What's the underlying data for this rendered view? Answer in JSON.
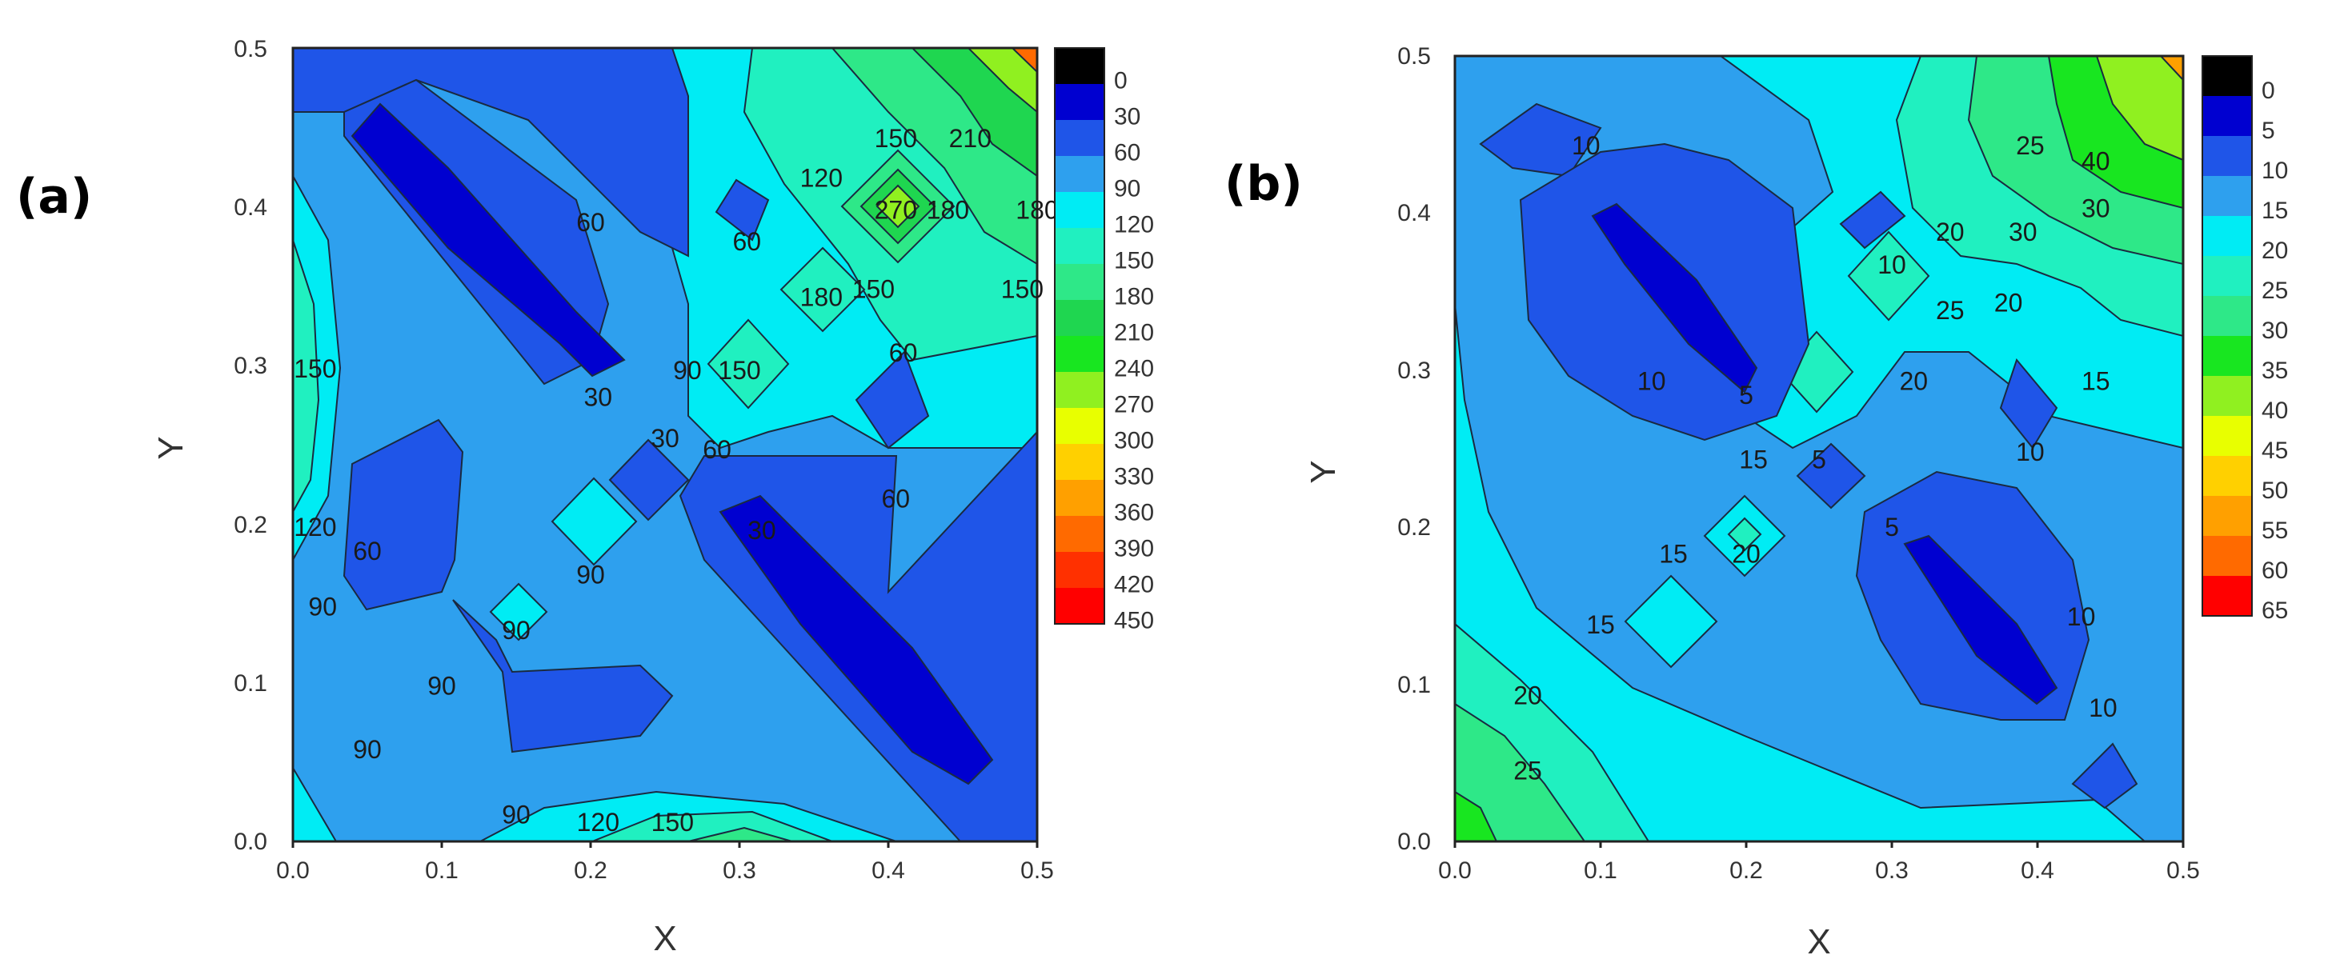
{
  "chart_data": [
    {
      "panel_label": "(a)",
      "type": "contour",
      "xlabel": "X",
      "ylabel": "Y",
      "xlim": [
        0.0,
        0.5
      ],
      "ylim": [
        0.0,
        0.5
      ],
      "x_ticks": [
        "0.0",
        "0.1",
        "0.2",
        "0.3",
        "0.4",
        "0.5"
      ],
      "y_ticks": [
        "0.0",
        "0.1",
        "0.2",
        "0.3",
        "0.4",
        "0.5"
      ],
      "colorbar": {
        "levels": [
          "0",
          "30",
          "60",
          "90",
          "120",
          "150",
          "180",
          "210",
          "240",
          "270",
          "300",
          "330",
          "360",
          "390",
          "420",
          "450"
        ],
        "colors": [
          "#000000",
          "#0000d0",
          "#1f55e8",
          "#2ea0ee",
          "#00ecf4",
          "#20f0c0",
          "#2ee888",
          "#1fd650",
          "#18e620",
          "#90f020",
          "#e8ff00",
          "#ffd000",
          "#ffa000",
          "#ff6a00",
          "#ff3000",
          "#ff0000"
        ]
      },
      "contour_labels": [
        {
          "text": "60",
          "x": 0.2,
          "y": 0.39
        },
        {
          "text": "60",
          "x": 0.305,
          "y": 0.378
        },
        {
          "text": "120",
          "x": 0.355,
          "y": 0.418
        },
        {
          "text": "150",
          "x": 0.405,
          "y": 0.443
        },
        {
          "text": "210",
          "x": 0.455,
          "y": 0.443
        },
        {
          "text": "270",
          "x": 0.405,
          "y": 0.398
        },
        {
          "text": "180",
          "x": 0.44,
          "y": 0.398
        },
        {
          "text": "180",
          "x": 0.5,
          "y": 0.398
        },
        {
          "text": "180",
          "x": 0.355,
          "y": 0.343
        },
        {
          "text": "150",
          "x": 0.39,
          "y": 0.348
        },
        {
          "text": "150",
          "x": 0.49,
          "y": 0.348
        },
        {
          "text": "90",
          "x": 0.265,
          "y": 0.297
        },
        {
          "text": "150",
          "x": 0.3,
          "y": 0.297
        },
        {
          "text": "60",
          "x": 0.41,
          "y": 0.308
        },
        {
          "text": "30",
          "x": 0.205,
          "y": 0.28
        },
        {
          "text": "30",
          "x": 0.25,
          "y": 0.254
        },
        {
          "text": "60",
          "x": 0.285,
          "y": 0.247
        },
        {
          "text": "30",
          "x": 0.315,
          "y": 0.196
        },
        {
          "text": "60",
          "x": 0.405,
          "y": 0.216
        },
        {
          "text": "150",
          "x": 0.015,
          "y": 0.298
        },
        {
          "text": "120",
          "x": 0.015,
          "y": 0.198
        },
        {
          "text": "60",
          "x": 0.05,
          "y": 0.183
        },
        {
          "text": "90",
          "x": 0.02,
          "y": 0.148
        },
        {
          "text": "90",
          "x": 0.2,
          "y": 0.168
        },
        {
          "text": "90",
          "x": 0.15,
          "y": 0.133
        },
        {
          "text": "90",
          "x": 0.1,
          "y": 0.098
        },
        {
          "text": "90",
          "x": 0.05,
          "y": 0.058
        },
        {
          "text": "90",
          "x": 0.15,
          "y": 0.017
        },
        {
          "text": "120",
          "x": 0.205,
          "y": 0.012
        },
        {
          "text": "150",
          "x": 0.255,
          "y": 0.012
        }
      ]
    },
    {
      "panel_label": "(b)",
      "type": "contour",
      "xlabel": "X",
      "ylabel": "Y",
      "xlim": [
        0.0,
        0.5
      ],
      "ylim": [
        0.0,
        0.5
      ],
      "x_ticks": [
        "0.0",
        "0.1",
        "0.2",
        "0.3",
        "0.4",
        "0.5"
      ],
      "y_ticks": [
        "0.0",
        "0.1",
        "0.2",
        "0.3",
        "0.4",
        "0.5"
      ],
      "colorbar": {
        "levels": [
          "0",
          "5",
          "10",
          "15",
          "20",
          "25",
          "30",
          "35",
          "40",
          "45",
          "50",
          "55",
          "60",
          "65"
        ],
        "colors": [
          "#000000",
          "#0000d0",
          "#1f55e8",
          "#2ea0ee",
          "#00ecf4",
          "#20f0c0",
          "#2ee888",
          "#18e620",
          "#90f020",
          "#e8ff00",
          "#ffd000",
          "#ffa000",
          "#ff6a00",
          "#ff0000"
        ]
      },
      "contour_labels": [
        {
          "text": "10",
          "x": 0.09,
          "y": 0.443
        },
        {
          "text": "25",
          "x": 0.395,
          "y": 0.443
        },
        {
          "text": "40",
          "x": 0.44,
          "y": 0.433
        },
        {
          "text": "30",
          "x": 0.44,
          "y": 0.403
        },
        {
          "text": "30",
          "x": 0.39,
          "y": 0.388
        },
        {
          "text": "20",
          "x": 0.34,
          "y": 0.388
        },
        {
          "text": "10",
          "x": 0.3,
          "y": 0.367
        },
        {
          "text": "25",
          "x": 0.34,
          "y": 0.338
        },
        {
          "text": "20",
          "x": 0.38,
          "y": 0.343
        },
        {
          "text": "20",
          "x": 0.315,
          "y": 0.293
        },
        {
          "text": "15",
          "x": 0.44,
          "y": 0.293
        },
        {
          "text": "10",
          "x": 0.135,
          "y": 0.293
        },
        {
          "text": "5",
          "x": 0.2,
          "y": 0.284
        },
        {
          "text": "15",
          "x": 0.205,
          "y": 0.243
        },
        {
          "text": "5",
          "x": 0.25,
          "y": 0.243
        },
        {
          "text": "10",
          "x": 0.395,
          "y": 0.248
        },
        {
          "text": "5",
          "x": 0.3,
          "y": 0.2
        },
        {
          "text": "20",
          "x": 0.2,
          "y": 0.183
        },
        {
          "text": "15",
          "x": 0.15,
          "y": 0.183
        },
        {
          "text": "15",
          "x": 0.1,
          "y": 0.138
        },
        {
          "text": "10",
          "x": 0.43,
          "y": 0.143
        },
        {
          "text": "20",
          "x": 0.05,
          "y": 0.093
        },
        {
          "text": "10",
          "x": 0.445,
          "y": 0.085
        },
        {
          "text": "25",
          "x": 0.05,
          "y": 0.045
        }
      ]
    }
  ]
}
